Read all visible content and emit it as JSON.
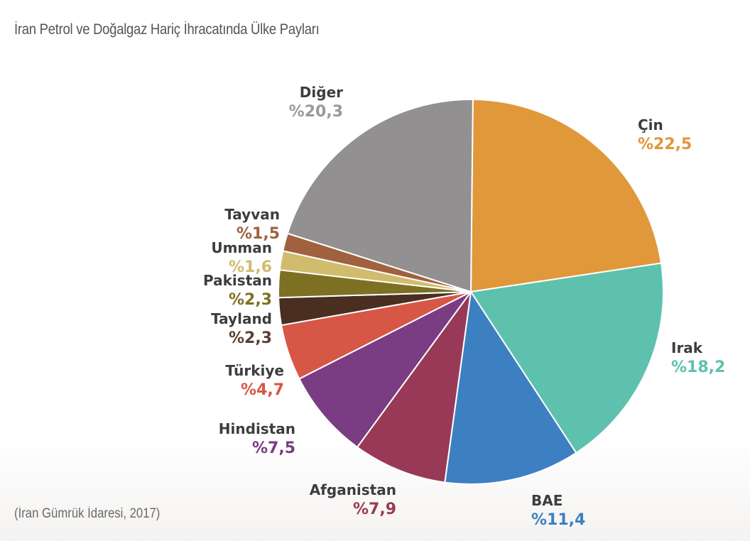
{
  "chart_data": {
    "type": "pie",
    "title": "İran Petrol ve Doğalgaz Hariç İhracatında Ülke Payları",
    "source": "(İran Gümrük İdaresi, 2017)",
    "slices": [
      {
        "name": "Çin",
        "value": 22.5,
        "label": "%22,5",
        "color": "#E0983A"
      },
      {
        "name": "Irak",
        "value": 18.2,
        "label": "%18,2",
        "color": "#5DC1AE"
      },
      {
        "name": "BAE",
        "value": 11.4,
        "label": "%11,4",
        "color": "#3C80C2"
      },
      {
        "name": "Afganistan",
        "value": 7.9,
        "label": "%7,9",
        "color": "#983A57"
      },
      {
        "name": "Hindistan",
        "value": 7.5,
        "label": "%7,5",
        "color": "#7A3C83"
      },
      {
        "name": "Türkiye",
        "value": 4.7,
        "label": "%4,7",
        "color": "#D75746"
      },
      {
        "name": "Tayland",
        "value": 2.3,
        "label": "%2,3",
        "color": "#4A2E20"
      },
      {
        "name": "Pakistan",
        "value": 2.3,
        "label": "%2,3",
        "color": "#7D7022"
      },
      {
        "name": "Umman",
        "value": 1.6,
        "label": "%1,6",
        "color": "#D1BC6E"
      },
      {
        "name": "Tayvan",
        "value": 1.5,
        "label": "%1,5",
        "color": "#A0613E"
      },
      {
        "name": "Diğer",
        "value": 20.3,
        "label": "%20,3",
        "color": "#929090"
      }
    ],
    "value_label_colors": {
      "Tayland": "#5a4030",
      "Diğer": "#9a9a9a"
    }
  }
}
